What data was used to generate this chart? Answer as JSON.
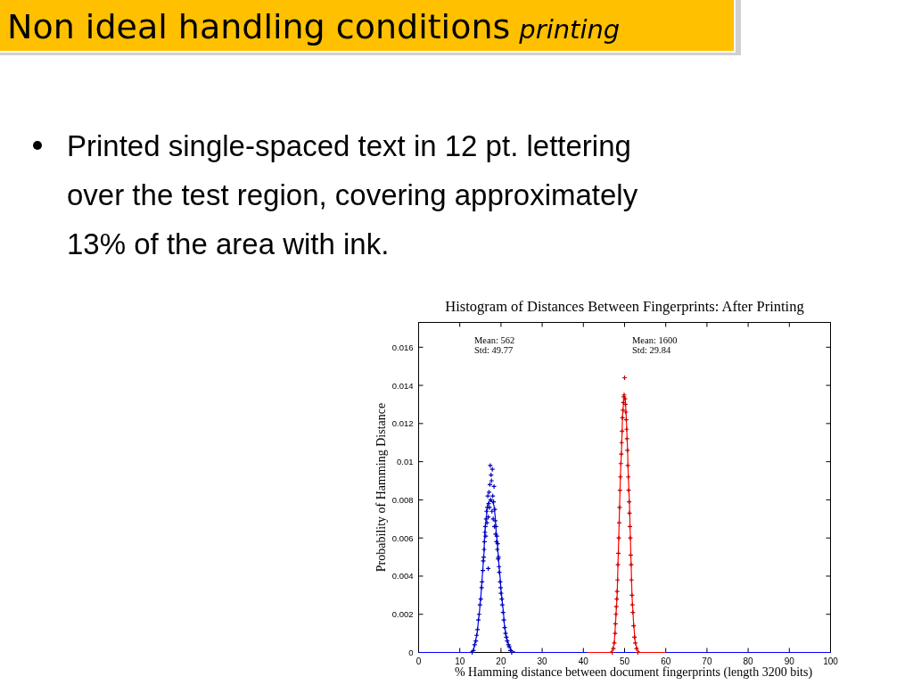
{
  "chart_data": {
    "type": "scatter",
    "title": "Non ideal handling conditions printing",
    "subtitle": "Histogram of Distances Between Fingerprints: After Printing",
    "xlabel": "% Hamming distance between document fingerprints (length 3200 bits)",
    "ylabel": "Probability of Hamming Distance",
    "annotations": [
      "Printed single-spaced text in 12 pt. lettering over the test region, covering approximately 13% of the area with ink.",
      "Mean: 562",
      "Std: 49.77",
      "Mean: 1600",
      "Std: 29.84"
    ],
    "xlim": [
      0,
      100
    ],
    "xticks": [
      0,
      10,
      20,
      30,
      40,
      50,
      60,
      70,
      80,
      90,
      100
    ],
    "ylim": [
      0,
      0.0173
    ],
    "yticks": [
      0,
      0.002,
      0.004,
      0.006,
      0.008,
      0.01,
      0.012,
      0.014,
      0.016
    ],
    "series": [
      {
        "type": "line",
        "color": "#0000ff",
        "x": [
          0,
          12.5,
          13.3,
          13.7,
          14.2,
          14.5,
          14.8,
          15.1,
          15.3,
          15.5,
          15.7,
          15.9,
          16.0,
          16.2,
          16.5,
          16.7,
          17.1,
          17.5,
          17.9,
          18.3,
          18.6,
          18.8,
          19.1,
          19.3,
          19.5,
          19.8,
          20.0,
          20.3,
          20.6,
          20.8,
          21.3,
          21.9,
          22.6,
          23.5,
          100
        ],
        "values": [
          0,
          0,
          0.0001,
          0.0005,
          0.001,
          0.0016,
          0.0022,
          0.0029,
          0.0035,
          0.0041,
          0.0047,
          0.0053,
          0.006,
          0.0066,
          0.0072,
          0.0077,
          0.0079,
          0.008,
          0.0079,
          0.0077,
          0.0071,
          0.0064,
          0.0058,
          0.0052,
          0.0046,
          0.0039,
          0.0033,
          0.0027,
          0.0021,
          0.0015,
          0.0008,
          0.0004,
          0.0001,
          0,
          0
        ]
      },
      {
        "type": "line",
        "color": "#ff0000",
        "x": [
          41,
          46.5,
          47.0,
          47.5,
          47.8,
          48.2,
          48.4,
          48.6,
          48.8,
          49.0,
          49.3,
          49.5,
          49.8,
          50.0,
          50.2,
          50.4,
          50.7,
          50.9,
          51.2,
          51.4,
          51.6,
          51.8,
          52.2,
          52.6,
          53.2,
          53.7,
          60
        ],
        "values": [
          0,
          0,
          0.0001,
          0.0005,
          0.0015,
          0.003,
          0.0046,
          0.0061,
          0.0077,
          0.0093,
          0.0108,
          0.0124,
          0.0132,
          0.0134,
          0.0132,
          0.0124,
          0.0108,
          0.0093,
          0.0077,
          0.0061,
          0.0046,
          0.003,
          0.0015,
          0.0005,
          0.0001,
          0,
          0
        ]
      },
      {
        "color": "#0000b4",
        "marker": "cross",
        "x": [
          13.0,
          13.3,
          13.6,
          13.9,
          14.1,
          14.3,
          14.5,
          14.7,
          14.9,
          15.1,
          15.3,
          15.4,
          15.6,
          15.7,
          15.8,
          15.9,
          16.0,
          16.1,
          16.2,
          16.3,
          16.4,
          16.5,
          16.6,
          16.7,
          16.8,
          16.9,
          16.9,
          17.0,
          17.1,
          17.2,
          17.3,
          17.4,
          17.5,
          17.6,
          17.7,
          17.8,
          17.9,
          18.0,
          18.1,
          18.2,
          18.3,
          18.4,
          18.5,
          18.6,
          18.7,
          18.8,
          18.9,
          19.0,
          19.1,
          19.2,
          19.3,
          19.4,
          19.5,
          19.6,
          19.8,
          19.9,
          20.0,
          20.2,
          20.3,
          20.5,
          20.7,
          20.9,
          21.1,
          21.3,
          21.5,
          21.8,
          22.0,
          22.3,
          22.6
        ],
        "values": [
          0.0,
          0.0001,
          0.0004,
          0.0006,
          0.0009,
          0.0012,
          0.0017,
          0.002,
          0.0025,
          0.0028,
          0.0034,
          0.0037,
          0.0043,
          0.0048,
          0.005,
          0.0054,
          0.0058,
          0.0063,
          0.0066,
          0.0061,
          0.007,
          0.0074,
          0.0068,
          0.0076,
          0.0082,
          0.0071,
          0.0044,
          0.0078,
          0.0084,
          0.0076,
          0.0088,
          0.0098,
          0.008,
          0.0093,
          0.009,
          0.0074,
          0.0096,
          0.0082,
          0.007,
          0.0079,
          0.0087,
          0.0066,
          0.0075,
          0.0069,
          0.0062,
          0.0066,
          0.0058,
          0.0061,
          0.0054,
          0.0057,
          0.0049,
          0.005,
          0.0045,
          0.0042,
          0.0037,
          0.0034,
          0.0031,
          0.0028,
          0.0025,
          0.0021,
          0.0017,
          0.0013,
          0.001,
          0.0008,
          0.0006,
          0.0004,
          0.0003,
          0.0001,
          0.0
        ]
      },
      {
        "color": "#c80000",
        "marker": "cross",
        "x": [
          47.0,
          47.3,
          47.5,
          47.7,
          47.8,
          47.9,
          48.0,
          48.1,
          48.2,
          48.3,
          48.4,
          48.5,
          48.6,
          48.7,
          48.8,
          48.9,
          49.0,
          49.1,
          49.2,
          49.3,
          49.4,
          49.5,
          49.6,
          49.7,
          49.8,
          49.9,
          50.0,
          50.1,
          50.2,
          50.3,
          50.4,
          50.5,
          50.6,
          50.7,
          50.8,
          50.9,
          51.0,
          51.1,
          51.2,
          51.3,
          51.4,
          51.5,
          51.6,
          51.7,
          51.8,
          51.9,
          52.0,
          52.2,
          52.4,
          52.6,
          52.9,
          53.2
        ],
        "values": [
          0.0,
          0.0002,
          0.0005,
          0.001,
          0.0015,
          0.002,
          0.0024,
          0.0028,
          0.0032,
          0.0038,
          0.0046,
          0.0052,
          0.006,
          0.0068,
          0.0076,
          0.0085,
          0.0092,
          0.0099,
          0.0104,
          0.011,
          0.0116,
          0.0123,
          0.0127,
          0.0131,
          0.0134,
          0.0135,
          0.0144,
          0.0133,
          0.013,
          0.0126,
          0.0122,
          0.0117,
          0.0112,
          0.0106,
          0.0098,
          0.0092,
          0.0085,
          0.0079,
          0.0073,
          0.0066,
          0.006,
          0.0051,
          0.0046,
          0.0038,
          0.003,
          0.0025,
          0.0021,
          0.0014,
          0.0008,
          0.0005,
          0.0002,
          0.0
        ]
      }
    ]
  }
}
